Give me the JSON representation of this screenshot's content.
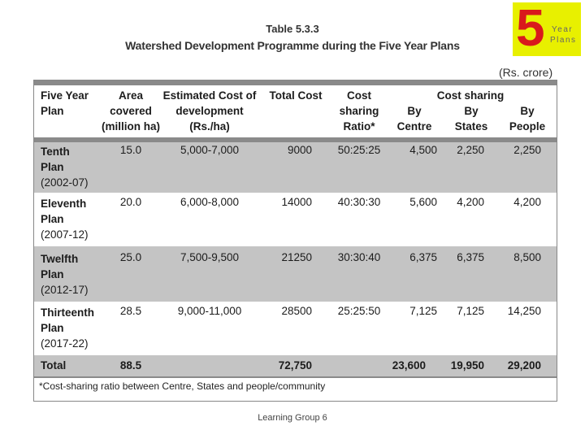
{
  "table_no": "Table 5.3.3",
  "table_title": "Watershed Development Programme during the Five Year Plans",
  "logo": {
    "digit": "5",
    "word1": "Year",
    "word2": "Plans",
    "bg_color": "#e8f000",
    "digit_color": "#d9191c"
  },
  "unit": "(Rs. crore)",
  "headers": {
    "plan": [
      "Five Year",
      "Plan"
    ],
    "area": [
      "Area",
      "covered",
      "(million ha)"
    ],
    "est": [
      "Estimated Cost of",
      "development",
      "(Rs./ha)"
    ],
    "total": [
      "Total Cost"
    ],
    "ratio": [
      "Cost",
      "sharing",
      "Ratio*"
    ],
    "group": "Cost sharing",
    "centre": [
      "By",
      "Centre"
    ],
    "states": [
      "By",
      "States"
    ],
    "people": [
      "By",
      "People"
    ]
  },
  "rows": [
    {
      "plan": [
        "Tenth",
        "Plan",
        "(2002-07)"
      ],
      "area": "15.0",
      "est": "5,000-7,000",
      "total": "9000",
      "ratio": "50:25:25",
      "centre": "4,500",
      "states": "2,250",
      "people": "2,250"
    },
    {
      "plan": [
        "Eleventh",
        "Plan",
        "(2007-12)"
      ],
      "area": "20.0",
      "est": "6,000-8,000",
      "total": "14000",
      "ratio": "40:30:30",
      "centre": "5,600",
      "states": "4,200",
      "people": "4,200"
    },
    {
      "plan": [
        "Twelfth",
        "Plan",
        "(2012-17)"
      ],
      "area": "25.0",
      "est": "7,500-9,500",
      "total": "21250",
      "ratio": "30:30:40",
      "centre": "6,375",
      "states": "6,375",
      "people": "8,500"
    },
    {
      "plan": [
        "Thirteenth",
        "Plan",
        "(2017-22)"
      ],
      "area": "28.5",
      "est": "9,000-11,000",
      "total": "28500",
      "ratio": "25:25:50",
      "centre": "7,125",
      "states": "7,125",
      "people": "14,250"
    }
  ],
  "total_row": {
    "label": "Total",
    "area": "88.5",
    "total": "72,750",
    "centre": "23,600",
    "states": "19,950",
    "people": "29,200"
  },
  "footnote": "*Cost-sharing ratio between Centre, States and people/community",
  "caption": "Learning Group 6"
}
